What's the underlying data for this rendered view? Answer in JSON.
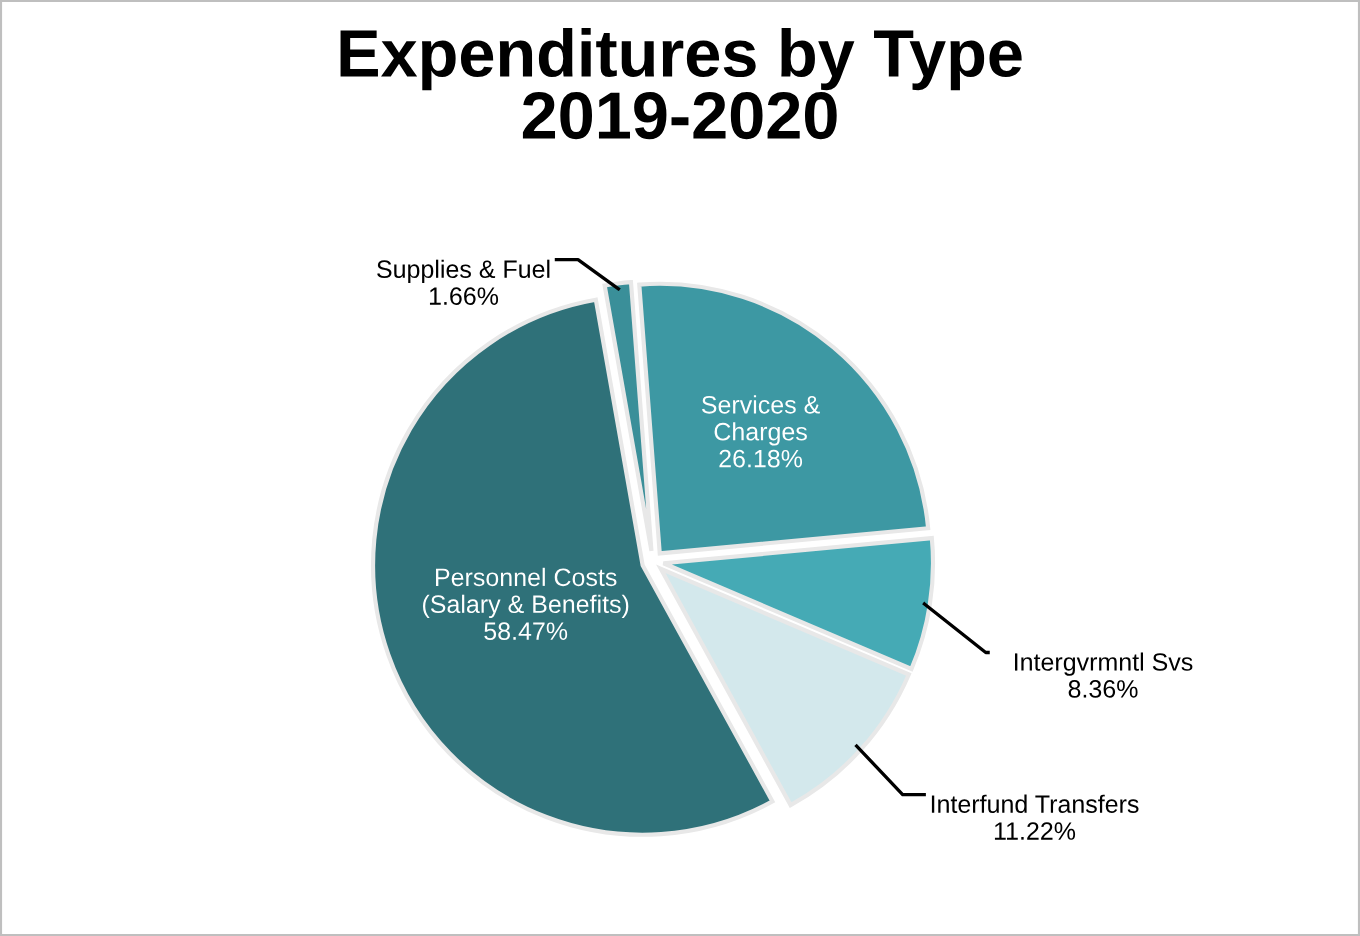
{
  "chart_data": {
    "type": "pie",
    "title": "Expenditures by Type\n2019-2020",
    "categories": [
      "Supplies & Fuel",
      "Services &\nCharges",
      "Intergvrmntl Svs",
      "Interfund Transfers",
      "Personnel Costs\n(Salary & Benefits)"
    ],
    "values": [
      1.66,
      26.18,
      8.36,
      11.22,
      58.47
    ],
    "value_labels": [
      "1.66%",
      "26.18%",
      "8.36%",
      "11.22%",
      "58.47%"
    ],
    "colors": [
      "#3a8f99",
      "#3d98a3",
      "#45aab5",
      "#d3e8ec",
      "#2f7179"
    ]
  }
}
